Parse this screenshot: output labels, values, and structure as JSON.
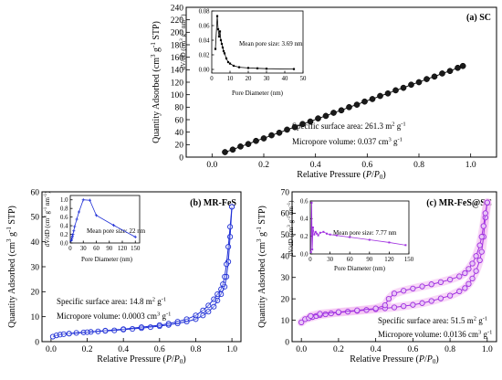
{
  "chart_data": [
    {
      "type": "scatter",
      "title": "(a) SC",
      "xlabel": "Relative Pressure (P/P₀)",
      "ylabel": "Quantity Adsorbed (cm³ g⁻¹ STP)",
      "xlim": [
        -0.1,
        1.1
      ],
      "ylim": [
        0,
        240
      ],
      "xticks": [
        "0.0",
        "0.2",
        "0.4",
        "0.6",
        "0.8",
        "1.0"
      ],
      "yticks": [
        "0",
        "20",
        "40",
        "60",
        "80",
        "100",
        "120",
        "140",
        "160",
        "180",
        "200",
        "220",
        "240"
      ],
      "grid": false,
      "annotations": [
        "Specific surface area: 261.3 m² g⁻¹",
        "Micropore volume: 0.037 cm³ g⁻¹"
      ],
      "colors": {
        "marker": "#1a1a1a",
        "line": "#000000"
      },
      "series": [
        {
          "kind": "adsorption-desorption",
          "x": [
            0.05,
            0.08,
            0.11,
            0.14,
            0.17,
            0.2,
            0.23,
            0.26,
            0.29,
            0.32,
            0.35,
            0.38,
            0.41,
            0.44,
            0.47,
            0.5,
            0.53,
            0.56,
            0.59,
            0.62,
            0.65,
            0.68,
            0.71,
            0.74,
            0.77,
            0.8,
            0.83,
            0.86,
            0.89,
            0.92,
            0.95,
            0.97
          ],
          "y": [
            8,
            12,
            17,
            21,
            26,
            30,
            35,
            39,
            44,
            48,
            53,
            57,
            62,
            66,
            71,
            75,
            80,
            84,
            89,
            93,
            98,
            102,
            107,
            111,
            116,
            120,
            125,
            129,
            134,
            138,
            143,
            146
          ]
        }
      ],
      "inset": {
        "type": "line",
        "xlabel": "Pore Diameter (nm)",
        "ylabel": "dV/dD (cm³ g⁻¹ nm⁻¹)",
        "xlim": [
          0,
          50
        ],
        "ylim": [
          -0.005,
          0.08
        ],
        "xticks": [
          "0",
          "10",
          "20",
          "30",
          "40",
          "50"
        ],
        "yticks": [
          "0.00",
          "0.02",
          "0.04",
          "0.06",
          "0.08"
        ],
        "annotation": "Mean pore size: 3.69 nm",
        "x": [
          2,
          3,
          3.5,
          4,
          4.5,
          5,
          5.5,
          6,
          6.5,
          7,
          8,
          9,
          10,
          12,
          15,
          20,
          25,
          30,
          45
        ],
        "y": [
          0.028,
          0.073,
          0.055,
          0.045,
          0.052,
          0.04,
          0.035,
          0.03,
          0.025,
          0.022,
          0.015,
          0.01,
          0.008,
          0.005,
          0.003,
          0.002,
          0.0015,
          0.001,
          0.0005
        ]
      }
    },
    {
      "type": "line",
      "title": "(b) MR-FeS",
      "xlabel": "Relative Pressure (P/P₀)",
      "ylabel": "Quantity Adsorbed (cm³ g⁻¹ STP)",
      "xlim": [
        -0.05,
        1.05
      ],
      "ylim": [
        0,
        60
      ],
      "xticks": [
        "0.0",
        "0.2",
        "0.4",
        "0.6",
        "0.8",
        "1.0"
      ],
      "yticks": [
        "0",
        "10",
        "20",
        "30",
        "40",
        "50",
        "60"
      ],
      "grid": false,
      "annotations": [
        "Specific surface area: 14.8 m² g⁻¹",
        "Micropore volume: 0.0003 cm³ g⁻¹"
      ],
      "colors": {
        "series": "#1f2fd6"
      },
      "series": [
        {
          "kind": "adsorption",
          "x": [
            0.01,
            0.03,
            0.05,
            0.07,
            0.1,
            0.14,
            0.18,
            0.22,
            0.26,
            0.3,
            0.35,
            0.4,
            0.45,
            0.5,
            0.55,
            0.6,
            0.65,
            0.7,
            0.75,
            0.8,
            0.84,
            0.87,
            0.9,
            0.92,
            0.94,
            0.96,
            0.97,
            0.98,
            0.99,
            1.0
          ],
          "y": [
            2.0,
            2.5,
            2.8,
            3.0,
            3.2,
            3.5,
            3.7,
            3.9,
            4.1,
            4.3,
            4.5,
            4.8,
            5.1,
            5.4,
            5.8,
            6.2,
            6.7,
            7.3,
            8.0,
            9.0,
            10.5,
            12,
            14,
            16.5,
            19,
            22,
            26,
            32,
            42,
            54
          ]
        },
        {
          "kind": "desorption",
          "x": [
            1.0,
            0.99,
            0.98,
            0.97,
            0.96,
            0.95,
            0.94,
            0.92,
            0.9,
            0.87,
            0.84,
            0.8,
            0.75,
            0.7,
            0.65,
            0.6,
            0.5,
            0.4,
            0.3,
            0.2,
            0.1
          ],
          "y": [
            54,
            46,
            38,
            31,
            26,
            23,
            21,
            19,
            17,
            14.5,
            12.5,
            10.5,
            9.0,
            8.0,
            7.2,
            6.6,
            5.8,
            5.0,
            4.4,
            3.8,
            3.2
          ]
        }
      ],
      "inset": {
        "type": "line",
        "xlabel": "Pore Diameter (nm)",
        "ylabel": "dV/dD (cm³ g⁻¹ nm⁻¹)",
        "xlim": [
          0,
          160
        ],
        "ylim": [
          0,
          1.1
        ],
        "xticks": [
          "0",
          "30",
          "60",
          "90",
          "120",
          "150"
        ],
        "yticks": [
          "0.0",
          "0.2",
          "0.4",
          "0.6",
          "0.8",
          "1.0"
        ],
        "annotation": "Mean pore size: 22 nm",
        "x": [
          2,
          3,
          4,
          5,
          6,
          8,
          10,
          15,
          20,
          30,
          45,
          60,
          100,
          150
        ],
        "y": [
          0.05,
          0.08,
          0.12,
          0.16,
          0.2,
          0.28,
          0.38,
          0.55,
          0.72,
          1.0,
          0.99,
          0.64,
          0.41,
          0.14
        ]
      }
    },
    {
      "type": "line",
      "title": "(c) MR-FeS@SC",
      "xlabel": "Relative Pressure (P/P₀)",
      "ylabel": "Quantity Adsorbed (cm³ g⁻¹ STP)",
      "xlim": [
        -0.05,
        1.05
      ],
      "ylim": [
        0,
        70
      ],
      "xticks": [
        "0.0",
        "0.2",
        "0.4",
        "0.6",
        "0.8",
        "1.0"
      ],
      "yticks": [
        "0",
        "10",
        "20",
        "30",
        "40",
        "50",
        "60",
        "70"
      ],
      "grid": false,
      "annotations": [
        "Specific surface area: 51.5 m² g⁻¹",
        "Micropore volume: 0.0136 cm³ g⁻¹"
      ],
      "colors": {
        "series": "#a030e0",
        "glow": "#f2b8f0"
      },
      "series": [
        {
          "kind": "adsorption",
          "x": [
            0.0,
            0.02,
            0.04,
            0.06,
            0.08,
            0.1,
            0.13,
            0.16,
            0.2,
            0.25,
            0.3,
            0.35,
            0.4,
            0.45,
            0.5,
            0.55,
            0.6,
            0.65,
            0.7,
            0.75,
            0.8,
            0.85,
            0.88,
            0.9,
            0.92,
            0.94,
            0.96,
            0.97,
            0.98,
            0.99,
            1.0
          ],
          "y": [
            9.0,
            10.5,
            11.0,
            11.5,
            12.0,
            12.4,
            12.8,
            13.2,
            13.6,
            14.0,
            14.4,
            14.8,
            15.2,
            15.6,
            16.0,
            16.6,
            17.2,
            18.0,
            19.0,
            20.2,
            21.5,
            23.5,
            25.0,
            27.0,
            29.5,
            33.0,
            38.0,
            42.0,
            49.0,
            58.0,
            65.0
          ]
        },
        {
          "kind": "desorption",
          "x": [
            1.0,
            0.99,
            0.98,
            0.97,
            0.96,
            0.94,
            0.92,
            0.9,
            0.88,
            0.85,
            0.8,
            0.75,
            0.7,
            0.65,
            0.6,
            0.55,
            0.5,
            0.47,
            0.45,
            0.4,
            0.3,
            0.2,
            0.1,
            0.05
          ],
          "y": [
            65.0,
            60.0,
            54.0,
            49.0,
            45.0,
            40.0,
            36.5,
            34.0,
            32.0,
            30.5,
            29.0,
            27.8,
            26.8,
            25.8,
            24.8,
            23.8,
            22.5,
            20.0,
            17.0,
            15.5,
            14.6,
            13.8,
            13.0,
            12.0
          ]
        }
      ],
      "inset": {
        "type": "line",
        "xlabel": "Pore Diameter (nm)",
        "ylabel": "dV/dD (cm³ g⁻¹ nm⁻¹)",
        "xlim": [
          0,
          150
        ],
        "ylim": [
          0,
          0.6
        ],
        "xticks": [
          "0",
          "30",
          "60",
          "90",
          "120",
          "150"
        ],
        "yticks": [
          "0.0",
          "0.2",
          "0.4",
          "0.6"
        ],
        "annotation": "Mean pore size: 7.77 nm",
        "x": [
          1,
          2,
          3,
          4,
          6,
          8,
          10,
          12,
          15,
          20,
          25,
          30,
          40,
          60,
          90,
          120,
          145
        ],
        "y": [
          0.02,
          0.58,
          0.05,
          0.3,
          0.22,
          0.25,
          0.23,
          0.21,
          0.24,
          0.25,
          0.23,
          0.22,
          0.21,
          0.19,
          0.16,
          0.13,
          0.1
        ]
      }
    }
  ]
}
